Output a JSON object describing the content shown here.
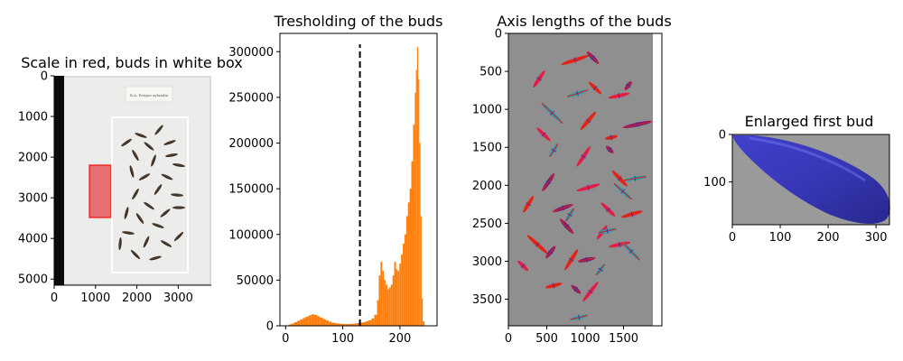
{
  "chart_data": [
    {
      "type": "image",
      "title": "Scale in red, buds in white box",
      "xticks": [
        0,
        1000,
        2000,
        3000
      ],
      "yticks": [
        0,
        1000,
        2000,
        3000,
        4000,
        5000
      ],
      "xlim": [
        0,
        3800
      ],
      "ylim": [
        5150,
        0
      ],
      "red_scale_box": {
        "x": [
          850,
          1400
        ],
        "y": [
          2200,
          3500
        ],
        "color": "#e02020"
      },
      "white_box": {
        "x": [
          1400,
          3300
        ],
        "y": [
          1000,
          4850
        ],
        "color": "#ffffff"
      },
      "paper_label": "R.A. Porgue xylandia"
    },
    {
      "type": "histogram",
      "title": "Tresholding of the buds",
      "xticks": [
        0,
        100,
        200
      ],
      "yticks": [
        0,
        50000,
        100000,
        150000,
        200000,
        250000,
        300000
      ],
      "xlim": [
        -10,
        265
      ],
      "ylim": [
        0,
        320000
      ],
      "bar_color": "#ff7f0e",
      "threshold": 130,
      "threshold_line_top": 308000,
      "bins": [
        [
          0,
          500
        ],
        [
          5,
          1500
        ],
        [
          10,
          2500
        ],
        [
          15,
          4000
        ],
        [
          20,
          5500
        ],
        [
          25,
          7000
        ],
        [
          30,
          8500
        ],
        [
          35,
          10000
        ],
        [
          40,
          11500
        ],
        [
          45,
          12500
        ],
        [
          50,
          12000
        ],
        [
          55,
          10500
        ],
        [
          60,
          9000
        ],
        [
          65,
          7500
        ],
        [
          70,
          6000
        ],
        [
          75,
          4500
        ],
        [
          80,
          3500
        ],
        [
          85,
          3000
        ],
        [
          90,
          2500
        ],
        [
          95,
          2200
        ],
        [
          100,
          2000
        ],
        [
          105,
          2000
        ],
        [
          110,
          2000
        ],
        [
          115,
          2200
        ],
        [
          120,
          2500
        ],
        [
          125,
          3000
        ],
        [
          130,
          3500
        ],
        [
          135,
          4000
        ],
        [
          140,
          5000
        ],
        [
          145,
          6000
        ],
        [
          150,
          8000
        ],
        [
          155,
          12000
        ],
        [
          160,
          28000
        ],
        [
          163,
          55000
        ],
        [
          166,
          70000
        ],
        [
          169,
          60000
        ],
        [
          172,
          50000
        ],
        [
          175,
          45000
        ],
        [
          178,
          40000
        ],
        [
          181,
          42000
        ],
        [
          184,
          45000
        ],
        [
          187,
          55000
        ],
        [
          190,
          70000
        ],
        [
          193,
          62000
        ],
        [
          196,
          60000
        ],
        [
          199,
          68000
        ],
        [
          202,
          78000
        ],
        [
          205,
          90000
        ],
        [
          208,
          100000
        ],
        [
          211,
          120000
        ],
        [
          214,
          135000
        ],
        [
          217,
          150000
        ],
        [
          220,
          180000
        ],
        [
          223,
          220000
        ],
        [
          226,
          255000
        ],
        [
          228,
          280000
        ],
        [
          230,
          305000
        ],
        [
          232,
          270000
        ],
        [
          234,
          200000
        ],
        [
          236,
          120000
        ],
        [
          238,
          30000
        ],
        [
          240,
          5000
        ]
      ]
    },
    {
      "type": "image",
      "title": "Axis lengths of the buds",
      "xticks": [
        0,
        500,
        1000,
        1500
      ],
      "yticks": [
        0,
        500,
        1000,
        1500,
        2000,
        2500,
        3000,
        3500
      ],
      "xlim": [
        0,
        2000
      ],
      "ylim": [
        3850,
        0
      ],
      "axis_colors": [
        "#e8281c",
        "#7a1a7a",
        "#e91f63",
        "#2aa0b5"
      ],
      "buds": [
        [
          870,
          350,
          190,
          18
        ],
        [
          1100,
          320,
          110,
          16
        ],
        [
          400,
          600,
          130,
          16
        ],
        [
          900,
          790,
          140,
          18
        ],
        [
          1130,
          720,
          110,
          14
        ],
        [
          1560,
          690,
          70,
          12
        ],
        [
          1440,
          820,
          140,
          12
        ],
        [
          570,
          1050,
          190,
          14
        ],
        [
          1040,
          1150,
          155,
          10
        ],
        [
          1680,
          1200,
          195,
          12
        ],
        [
          460,
          1330,
          120,
          14
        ],
        [
          590,
          1540,
          100,
          18
        ],
        [
          1340,
          1370,
          80,
          12
        ],
        [
          1320,
          1530,
          65,
          14
        ],
        [
          980,
          1620,
          155,
          16
        ],
        [
          1650,
          1910,
          150,
          10
        ],
        [
          1450,
          1910,
          140,
          16
        ],
        [
          520,
          1960,
          140,
          16
        ],
        [
          1040,
          2030,
          155,
          16
        ],
        [
          1490,
          2080,
          155,
          12
        ],
        [
          260,
          2250,
          125,
          18
        ],
        [
          710,
          2300,
          140,
          20
        ],
        [
          1300,
          2320,
          125,
          14
        ],
        [
          800,
          2390,
          100,
          18
        ],
        [
          1610,
          2380,
          140,
          16
        ],
        [
          760,
          2540,
          130,
          18
        ],
        [
          1220,
          2620,
          110,
          14
        ],
        [
          1290,
          2600,
          120,
          12
        ],
        [
          380,
          2780,
          180,
          12
        ],
        [
          550,
          2880,
          100,
          12
        ],
        [
          1450,
          2780,
          140,
          12
        ],
        [
          1600,
          2870,
          160,
          16
        ],
        [
          820,
          2980,
          160,
          18
        ],
        [
          1020,
          2980,
          115,
          12
        ],
        [
          190,
          3060,
          90,
          14
        ],
        [
          1200,
          3110,
          90,
          12
        ],
        [
          590,
          3320,
          110,
          14
        ],
        [
          880,
          3370,
          80,
          12
        ],
        [
          1070,
          3400,
          160,
          12
        ],
        [
          920,
          3740,
          120,
          14
        ]
      ]
    },
    {
      "type": "image",
      "title": "Enlarged first bud",
      "xticks": [
        0,
        100,
        200,
        300
      ],
      "yticks": [
        0,
        100
      ],
      "xlim": [
        0,
        328
      ],
      "ylim": [
        190,
        0
      ],
      "bud_color": "#3b3bcc"
    }
  ]
}
